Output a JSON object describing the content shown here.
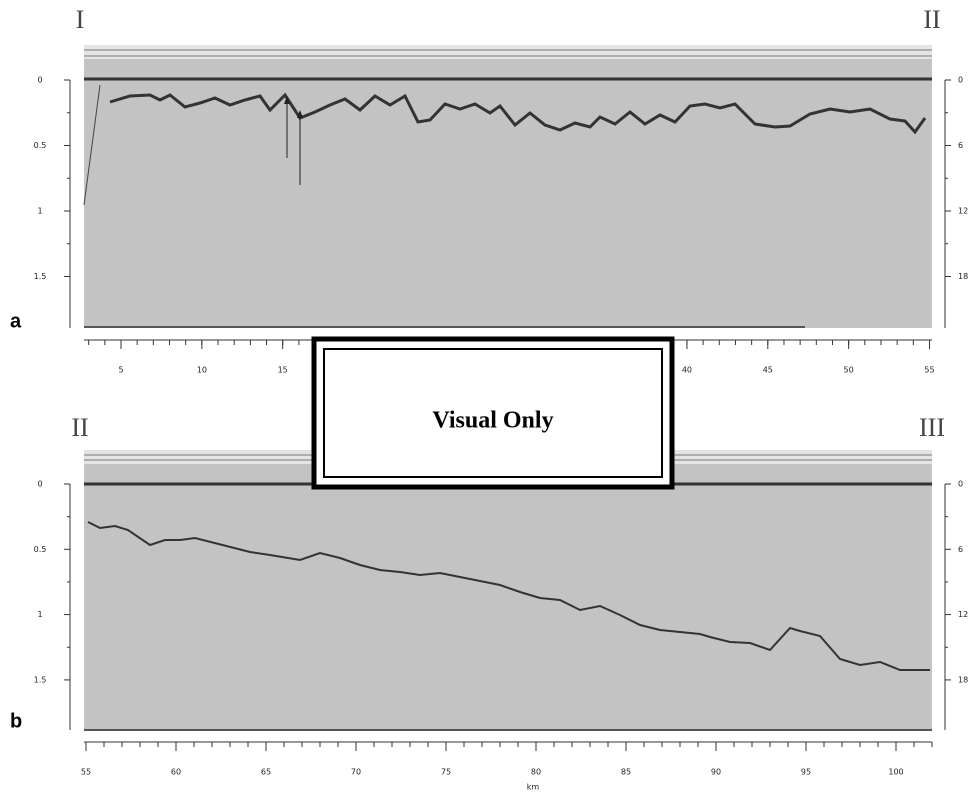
{
  "panels": [
    {
      "label": "a",
      "left_marker": "I",
      "right_marker": "II",
      "left_ticks": [
        0,
        0.5,
        1,
        1.5
      ],
      "right_ticks": [
        0,
        6,
        12,
        18
      ],
      "bottom_ticks": [
        5,
        10,
        15,
        40,
        45,
        50,
        55
      ]
    },
    {
      "label": "b",
      "left_marker": "II",
      "right_marker": "III",
      "left_ticks": [
        0,
        0.5,
        1,
        1.5
      ],
      "right_ticks": [
        0,
        6,
        12,
        18
      ],
      "bottom_ticks": [
        55,
        60,
        65,
        70,
        75,
        80,
        85,
        90,
        95,
        100
      ],
      "axis_label": "km"
    }
  ],
  "overlay": "Visual Only"
}
